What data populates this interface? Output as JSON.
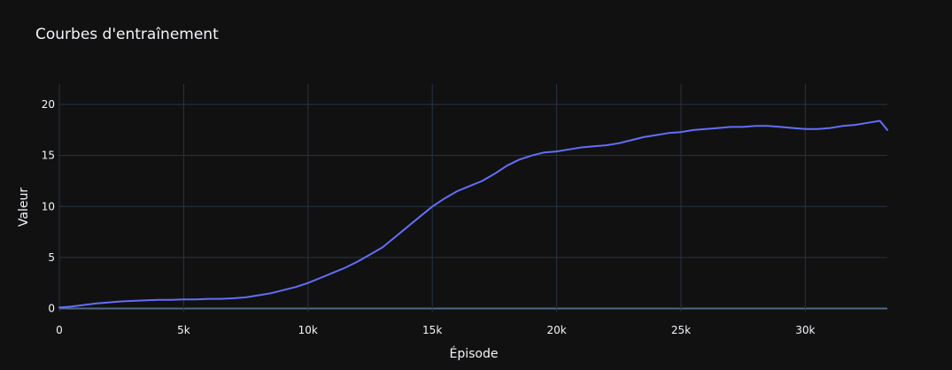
{
  "chart_data": {
    "type": "line",
    "title": "Courbes d'entraînement",
    "xlabel": "Épisode",
    "ylabel": "Valeur",
    "xlim": [
      0,
      33300
    ],
    "ylim": [
      -0.3,
      22
    ],
    "x_ticks": [
      0,
      5000,
      10000,
      15000,
      20000,
      25000,
      30000
    ],
    "x_tick_labels": [
      "0",
      "5k",
      "10k",
      "15k",
      "20k",
      "25k",
      "30k"
    ],
    "y_ticks": [
      0,
      5,
      10,
      15,
      20
    ],
    "y_tick_labels": [
      "0",
      "5",
      "10",
      "15",
      "20"
    ],
    "grid": true,
    "series": [
      {
        "name": "",
        "color": "#636efa",
        "x": [
          0,
          500,
          1000,
          1500,
          2000,
          2500,
          3000,
          3500,
          4000,
          4500,
          5000,
          5500,
          6000,
          6500,
          7000,
          7500,
          8000,
          8500,
          9000,
          9500,
          10000,
          10500,
          11000,
          11500,
          12000,
          12500,
          13000,
          13500,
          14000,
          14500,
          15000,
          15500,
          16000,
          16500,
          17000,
          17500,
          18000,
          18500,
          19000,
          19500,
          20000,
          20500,
          21000,
          21500,
          22000,
          22500,
          23000,
          23500,
          24000,
          24500,
          25000,
          25500,
          26000,
          26500,
          27000,
          27500,
          28000,
          28500,
          29000,
          29500,
          30000,
          30500,
          31000,
          31500,
          32000,
          32500,
          33000,
          33300
        ],
        "values": [
          0.1,
          0.2,
          0.35,
          0.5,
          0.6,
          0.7,
          0.75,
          0.8,
          0.85,
          0.85,
          0.9,
          0.9,
          0.95,
          0.95,
          1.0,
          1.1,
          1.3,
          1.5,
          1.8,
          2.1,
          2.5,
          3.0,
          3.5,
          4.0,
          4.6,
          5.3,
          6.0,
          7.0,
          8.0,
          9.0,
          10.0,
          10.8,
          11.5,
          12.0,
          12.5,
          13.2,
          14.0,
          14.6,
          15.0,
          15.3,
          15.4,
          15.6,
          15.8,
          15.9,
          16.0,
          16.2,
          16.5,
          16.8,
          17.0,
          17.2,
          17.3,
          17.5,
          17.6,
          17.7,
          17.8,
          17.8,
          17.9,
          17.9,
          17.8,
          17.7,
          17.6,
          17.6,
          17.7,
          17.9,
          18.0,
          18.2,
          18.4,
          17.5
        ]
      }
    ]
  }
}
